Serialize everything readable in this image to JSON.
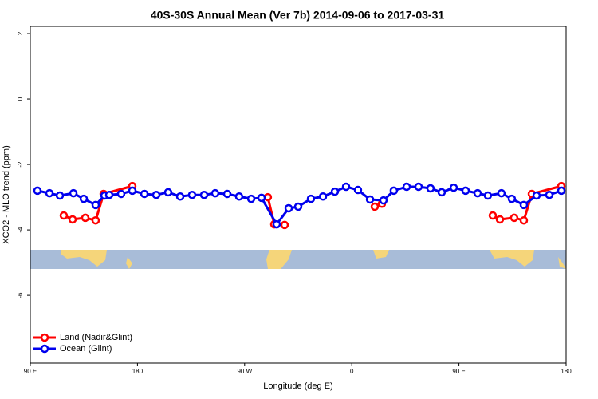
{
  "chart_data": {
    "type": "line",
    "title": "40S-30S Annual Mean (Ver 7b)   2014-09-06 to 2017-03-31",
    "x_label": "Longitude (deg E)",
    "y_label": "XCO2 - MLO trend (ppm)",
    "xlim": [
      90,
      540
    ],
    "xticks": [
      {
        "value": 90,
        "label": "90 E"
      },
      180,
      {
        "value": 270,
        "label": "90 W"
      },
      {
        "value": 360,
        "label": "0"
      },
      {
        "value": 450,
        "label": "90 E"
      },
      {
        "value": 540,
        "label": "180"
      }
    ],
    "ylim": [
      -8.07,
      2.22
    ],
    "yticks": [
      -6,
      -4,
      -2,
      0,
      2
    ],
    "legend": "lower left",
    "series": [
      {
        "name": "Land (Nadir&Glint)",
        "color": "#ff0000",
        "x": [
          118.1,
          125.5,
          136.2,
          144.9,
          151.6,
          175.7,
          250,
          289.5,
          294.9,
          303.6,
          340,
          379.3,
          385.3,
          450,
          478.4,
          484.4,
          496.4,
          504.5,
          511.2,
          536.0
        ],
        "values": [
          -3.56,
          -3.68,
          -3.63,
          -3.71,
          -2.9,
          -2.66,
          null,
          -3.0,
          -3.83,
          -3.85,
          null,
          -3.29,
          -3.2,
          null,
          -3.56,
          -3.68,
          -3.63,
          -3.71,
          -2.9,
          -2.66
        ]
      },
      {
        "name": "Ocean (Glint)",
        "color": "#0000ee",
        "x": [
          96.0,
          106.1,
          114.8,
          126.2,
          134.9,
          144.9,
          152.3,
          156.3,
          166.3,
          175.7,
          185.8,
          195.8,
          205.8,
          215.9,
          225.9,
          236.0,
          245.3,
          255.4,
          265.4,
          275.5,
          284.2,
          296.9,
          307.0,
          315.0,
          325.7,
          335.8,
          345.8,
          355.2,
          365.2,
          375.3,
          386.6,
          395.3,
          406.1,
          416.1,
          426.1,
          435.5,
          445.6,
          455.6,
          465.7,
          474.3,
          485.7,
          494.4,
          504.5,
          515.2,
          525.9,
          536.0
        ],
        "values": [
          -2.8,
          -2.88,
          -2.95,
          -2.88,
          -3.05,
          -3.24,
          -2.95,
          -2.93,
          -2.9,
          -2.8,
          -2.9,
          -2.93,
          -2.85,
          -2.98,
          -2.93,
          -2.93,
          -2.88,
          -2.9,
          -2.98,
          -3.05,
          -3.02,
          -3.83,
          -3.34,
          -3.29,
          -3.05,
          -2.98,
          -2.83,
          -2.68,
          -2.78,
          -3.07,
          -3.1,
          -2.8,
          -2.68,
          -2.68,
          -2.73,
          -2.85,
          -2.71,
          -2.8,
          -2.88,
          -2.95,
          -2.88,
          -3.05,
          -3.24,
          -2.95,
          -2.93,
          -2.8
        ]
      }
    ]
  }
}
